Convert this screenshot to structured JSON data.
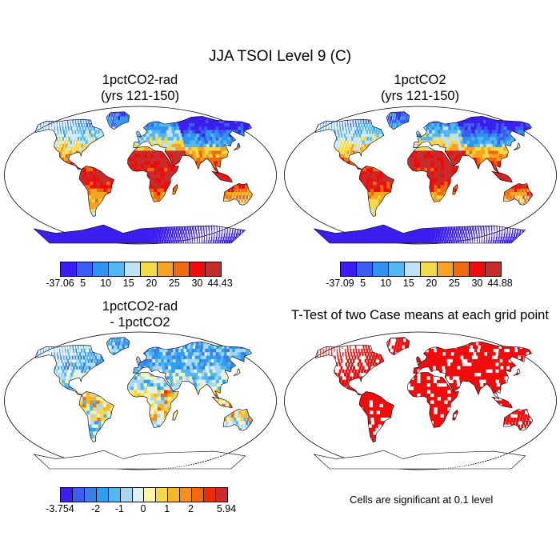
{
  "figure": {
    "title": "JJA TSOI Level 9 (C)"
  },
  "panels": [
    {
      "id": "p1",
      "title_line1": "1pctCO2-rad",
      "title_line2": "(yrs 121-150)"
    },
    {
      "id": "p2",
      "title_line1": "1pctCO2",
      "title_line2": "(yrs 121-150)"
    },
    {
      "id": "p3",
      "title_line1": "1pctCO2-rad",
      "title_line2": "- 1pctCO2"
    },
    {
      "id": "p4",
      "title_line1": "T-Test of two Case means at each grid point",
      "title_line2": ""
    }
  ],
  "colorbar_top_left": {
    "labels": [
      "-37.06",
      "5",
      "10",
      "15",
      "20",
      "25",
      "30",
      "44.43"
    ],
    "colors": [
      "#3b1ef0",
      "#3d5df0",
      "#2e94ef",
      "#52b7f2",
      "#bfe3f4",
      "#f4d94a",
      "#f6a41f",
      "#f06a0d",
      "#ee0d0a",
      "#c72c2c"
    ]
  },
  "colorbar_top_right": {
    "labels": [
      "-37.09",
      "5",
      "10",
      "15",
      "20",
      "25",
      "30",
      "44.88"
    ],
    "colors": [
      "#3b1ef0",
      "#3d5df0",
      "#2e94ef",
      "#52b7f2",
      "#bfe3f4",
      "#f4d94a",
      "#f6a41f",
      "#f06a0d",
      "#ee0d0a",
      "#c72c2c"
    ]
  },
  "colorbar_bottom_left": {
    "labels": [
      "-3.754",
      "-2",
      "-1",
      "0",
      "1",
      "2",
      "5.94"
    ],
    "colors": [
      "#3b1ef0",
      "#3d5df0",
      "#3b7ee8",
      "#2e9eef",
      "#52b7f2",
      "#a7d8f3",
      "#dff1f8",
      "#fbf3a6",
      "#f8d84a",
      "#f6b62a",
      "#f4901c",
      "#f06a0d",
      "#ee2a0a",
      "#cc2b2b"
    ]
  },
  "significance_note": "Cells are significant at 0.1 level",
  "colors": {
    "ocean": "#ffffff",
    "coast": "#000000",
    "significant": "#ee0c0c"
  }
}
